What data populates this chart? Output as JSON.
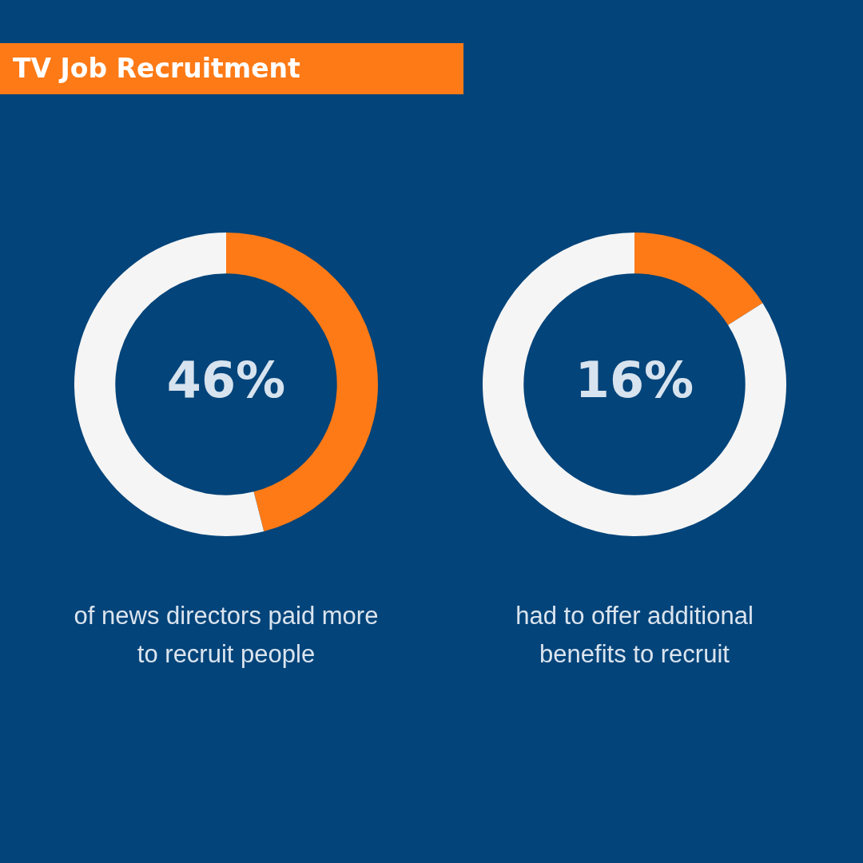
{
  "chart_data": [
    {
      "type": "donut",
      "title": "TV Job Recruitment",
      "categories": [
        null,
        null
      ],
      "values": [
        46,
        54
      ],
      "colors": [
        "#fd7a16",
        "#f5f5f5"
      ],
      "value_labels": [
        "46%",
        null
      ],
      "annotations": [
        "of news directors paid more to recruit people"
      ]
    },
    {
      "type": "donut",
      "categories": [
        null,
        null
      ],
      "values": [
        16,
        84
      ],
      "colors": [
        "#fd7a16",
        "#f5f5f5"
      ],
      "value_labels": [
        "16%",
        null
      ],
      "annotations": [
        "had to offer additional benefits to recruit"
      ]
    }
  ]
}
